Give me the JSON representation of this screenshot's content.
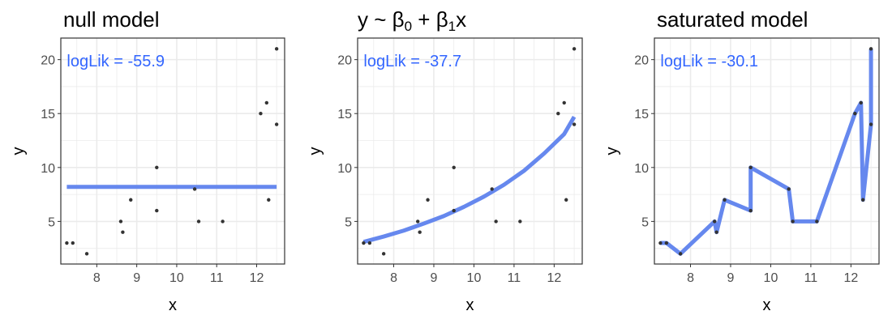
{
  "colors": {
    "fit_line": "#6688ee",
    "annotation": "#3366ff",
    "points": "#333333",
    "grid": "#ebebeb",
    "panel_border": "#333333"
  },
  "chart_data": [
    {
      "type": "scatter",
      "title": "null model",
      "xlabel": "x",
      "ylabel": "y",
      "xlim": [
        7.1,
        12.7
      ],
      "ylim": [
        1.05,
        22
      ],
      "x_ticks": [
        8,
        9,
        10,
        11,
        12
      ],
      "y_ticks": [
        5,
        10,
        15,
        20
      ],
      "grid": true,
      "annotation": "logLik = -55.9",
      "points": [
        {
          "x": 7.25,
          "y": 3
        },
        {
          "x": 7.4,
          "y": 3
        },
        {
          "x": 7.75,
          "y": 2
        },
        {
          "x": 8.6,
          "y": 5
        },
        {
          "x": 8.65,
          "y": 4
        },
        {
          "x": 8.85,
          "y": 7
        },
        {
          "x": 9.5,
          "y": 6
        },
        {
          "x": 9.5,
          "y": 10
        },
        {
          "x": 10.45,
          "y": 8
        },
        {
          "x": 10.55,
          "y": 5
        },
        {
          "x": 11.15,
          "y": 5
        },
        {
          "x": 12.1,
          "y": 15
        },
        {
          "x": 12.25,
          "y": 16
        },
        {
          "x": 12.3,
          "y": 7
        },
        {
          "x": 12.5,
          "y": 14
        },
        {
          "x": 12.5,
          "y": 21
        }
      ],
      "fit_line": [
        {
          "x": 7.25,
          "y": 8.2
        },
        {
          "x": 12.5,
          "y": 8.2
        }
      ]
    },
    {
      "type": "scatter",
      "title": "y ~ β₀ + β₁x",
      "xlabel": "x",
      "ylabel": "y",
      "xlim": [
        7.1,
        12.7
      ],
      "ylim": [
        1.05,
        22
      ],
      "x_ticks": [
        8,
        9,
        10,
        11,
        12
      ],
      "y_ticks": [
        5,
        10,
        15,
        20
      ],
      "grid": true,
      "annotation": "logLik = -37.7",
      "points": [
        {
          "x": 7.25,
          "y": 3
        },
        {
          "x": 7.4,
          "y": 3
        },
        {
          "x": 7.75,
          "y": 2
        },
        {
          "x": 8.6,
          "y": 5
        },
        {
          "x": 8.65,
          "y": 4
        },
        {
          "x": 8.85,
          "y": 7
        },
        {
          "x": 9.5,
          "y": 6
        },
        {
          "x": 9.5,
          "y": 10
        },
        {
          "x": 10.45,
          "y": 8
        },
        {
          "x": 10.55,
          "y": 5
        },
        {
          "x": 11.15,
          "y": 5
        },
        {
          "x": 12.1,
          "y": 15
        },
        {
          "x": 12.25,
          "y": 16
        },
        {
          "x": 12.3,
          "y": 7
        },
        {
          "x": 12.5,
          "y": 14
        },
        {
          "x": 12.5,
          "y": 21
        }
      ],
      "fit_line": [
        {
          "x": 7.25,
          "y": 3.1
        },
        {
          "x": 7.75,
          "y": 3.6
        },
        {
          "x": 8.25,
          "y": 4.15
        },
        {
          "x": 8.75,
          "y": 4.8
        },
        {
          "x": 9.25,
          "y": 5.5
        },
        {
          "x": 9.75,
          "y": 6.35
        },
        {
          "x": 10.25,
          "y": 7.3
        },
        {
          "x": 10.75,
          "y": 8.4
        },
        {
          "x": 11.25,
          "y": 9.7
        },
        {
          "x": 11.75,
          "y": 11.3
        },
        {
          "x": 12.25,
          "y": 13.1
        },
        {
          "x": 12.5,
          "y": 14.7
        }
      ]
    },
    {
      "type": "scatter",
      "title": "saturated model",
      "xlabel": "x",
      "ylabel": "y",
      "xlim": [
        7.1,
        12.7
      ],
      "ylim": [
        1.05,
        22
      ],
      "x_ticks": [
        8,
        9,
        10,
        11,
        12
      ],
      "y_ticks": [
        5,
        10,
        15,
        20
      ],
      "grid": true,
      "annotation": "logLik = -30.1",
      "points": [
        {
          "x": 7.25,
          "y": 3
        },
        {
          "x": 7.4,
          "y": 3
        },
        {
          "x": 7.75,
          "y": 2
        },
        {
          "x": 8.6,
          "y": 5
        },
        {
          "x": 8.65,
          "y": 4
        },
        {
          "x": 8.85,
          "y": 7
        },
        {
          "x": 9.5,
          "y": 6
        },
        {
          "x": 9.5,
          "y": 10
        },
        {
          "x": 10.45,
          "y": 8
        },
        {
          "x": 10.55,
          "y": 5
        },
        {
          "x": 11.15,
          "y": 5
        },
        {
          "x": 12.1,
          "y": 15
        },
        {
          "x": 12.25,
          "y": 16
        },
        {
          "x": 12.3,
          "y": 7
        },
        {
          "x": 12.5,
          "y": 14
        },
        {
          "x": 12.5,
          "y": 21
        }
      ],
      "fit_line": [
        {
          "x": 7.25,
          "y": 3
        },
        {
          "x": 7.4,
          "y": 3
        },
        {
          "x": 7.75,
          "y": 2
        },
        {
          "x": 8.6,
          "y": 5
        },
        {
          "x": 8.65,
          "y": 4
        },
        {
          "x": 8.85,
          "y": 7
        },
        {
          "x": 9.5,
          "y": 6
        },
        {
          "x": 9.5,
          "y": 10
        },
        {
          "x": 10.45,
          "y": 8
        },
        {
          "x": 10.55,
          "y": 5
        },
        {
          "x": 11.15,
          "y": 5
        },
        {
          "x": 12.1,
          "y": 15
        },
        {
          "x": 12.25,
          "y": 16
        },
        {
          "x": 12.3,
          "y": 7
        },
        {
          "x": 12.5,
          "y": 14
        },
        {
          "x": 12.5,
          "y": 21
        }
      ]
    }
  ]
}
